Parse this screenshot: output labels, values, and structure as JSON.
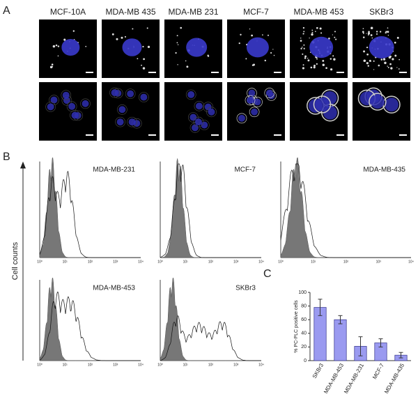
{
  "panels": {
    "a": "A",
    "b": "B",
    "c": "C"
  },
  "microscopy": {
    "cell_lines": [
      "MCF-10A",
      "MDA-MB 435",
      "MDA-MB 231",
      "MCF-7",
      "MDA-MB 453",
      "SKBr3"
    ]
  },
  "flow": {
    "y_label": "Cell counts",
    "xtick_labels": [
      "10⁰",
      "10¹",
      "10²",
      "10³",
      "10⁴"
    ],
    "plots": [
      {
        "title": "MDA-MB-231"
      },
      {
        "title": "MCF-7"
      },
      {
        "title": "MDA-MB-435"
      },
      {
        "title": "MDA-MB-453"
      },
      {
        "title": "SKBr3"
      }
    ]
  },
  "chart_data": {
    "type": "bar",
    "y_label": "% PC-PLC positive cells",
    "categories": [
      "SKBr3",
      "MDA-MB-453",
      "MDA-MB-231",
      "MCF-7",
      "MDA-MB-435"
    ],
    "values": [
      78,
      60,
      21,
      26,
      8
    ],
    "errors": [
      12,
      6,
      14,
      6,
      4
    ],
    "color": "#9a9af0",
    "ylim": [
      0,
      100
    ],
    "yticks": [
      0,
      20,
      40,
      60,
      80,
      100
    ]
  }
}
